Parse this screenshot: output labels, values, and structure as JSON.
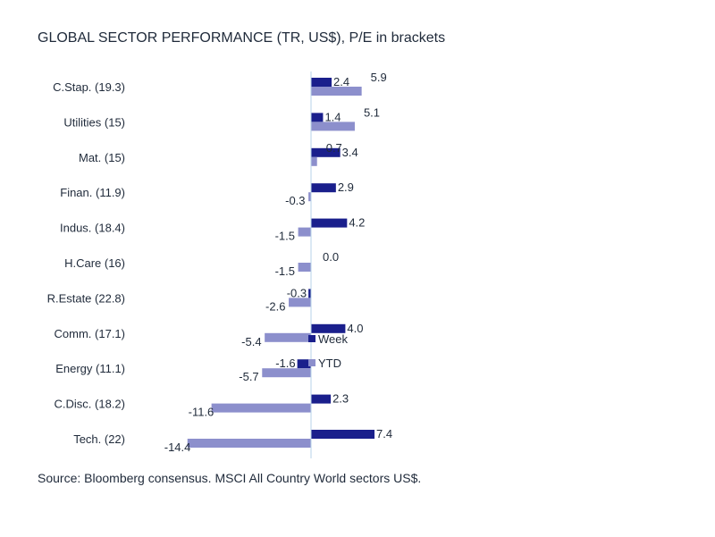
{
  "title": "GLOBAL SECTOR PERFORMANCE (TR, US$), P/E in brackets",
  "source": "Source: Bloomberg consensus. MSCI All Country World sectors US$.",
  "colors": {
    "week": "#1a1f8c",
    "ytd": "#8c8fcc",
    "axis": "#b7d3e8"
  },
  "chart_data": {
    "type": "bar",
    "orientation": "horizontal",
    "categories": [
      "C.Stap. (19.3)",
      "Utilities (15)",
      "Mat. (15)",
      "Finan. (11.9)",
      "Indus. (18.4)",
      "H.Care (16)",
      "R.Estate (22.8)",
      "Comm. (17.1)",
      "Energy (11.1)",
      "C.Disc. (18.2)",
      "Tech. (22)"
    ],
    "series": [
      {
        "name": "Week",
        "values": [
          2.4,
          1.4,
          3.4,
          2.9,
          4.2,
          0.0,
          -0.3,
          4.0,
          -1.6,
          2.3,
          7.4
        ]
      },
      {
        "name": "YTD",
        "values": [
          5.9,
          5.1,
          0.7,
          -0.3,
          -1.5,
          -1.5,
          -2.6,
          -5.4,
          -5.7,
          -11.6,
          -14.4
        ]
      }
    ],
    "legend_position": "center",
    "grid": false
  }
}
